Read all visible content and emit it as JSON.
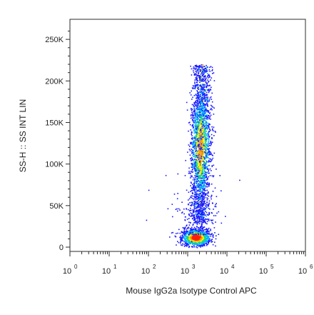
{
  "chart_data": {
    "type": "heatmap",
    "subtype": "flow-cytometry density dot plot",
    "xlabel": "Mouse IgG2a Isotype Control APC",
    "ylabel": "SS-H :: SS INT LIN",
    "x_scale": "log",
    "y_scale": "linear",
    "xlim": [
      1,
      1000000
    ],
    "ylim": [
      0,
      262144
    ],
    "y_ticks": [
      {
        "value": 0,
        "label": "0"
      },
      {
        "value": 50000,
        "label": "50K"
      },
      {
        "value": 100000,
        "label": "100K"
      },
      {
        "value": 150000,
        "label": "150K"
      },
      {
        "value": 200000,
        "label": "200K"
      },
      {
        "value": 250000,
        "label": "250K"
      }
    ],
    "x_ticks": [
      {
        "value": 1,
        "base": "10",
        "exp": "0"
      },
      {
        "value": 10,
        "base": "10",
        "exp": "1"
      },
      {
        "value": 100,
        "base": "10",
        "exp": "2"
      },
      {
        "value": 1000,
        "base": "10",
        "exp": "3"
      },
      {
        "value": 10000,
        "base": "10",
        "exp": "4"
      },
      {
        "value": 100000,
        "base": "10",
        "exp": "5"
      },
      {
        "value": 1000000,
        "base": "10",
        "exp": "6"
      }
    ],
    "colormap": [
      "#1a1aff",
      "#00b4ff",
      "#14d68c",
      "#f0f000",
      "#ff9600",
      "#ff1e00"
    ],
    "populations": [
      {
        "name": "low-SS cluster",
        "x_center": 1600,
        "x_spread_decades": 0.18,
        "y_center": 12000,
        "y_spread": 5000,
        "density": "very high"
      },
      {
        "name": "high-SS stripe",
        "x_center": 2000,
        "x_spread_decades": 0.12,
        "y_min": 30000,
        "y_max": 220000,
        "y_peak": 120000,
        "density": "high"
      }
    ],
    "grid": false,
    "legend": "none"
  }
}
